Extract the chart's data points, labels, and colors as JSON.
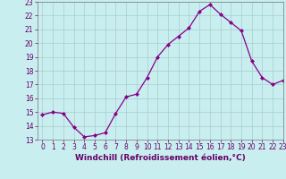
{
  "x": [
    0,
    1,
    2,
    3,
    4,
    5,
    6,
    7,
    8,
    9,
    10,
    11,
    12,
    13,
    14,
    15,
    16,
    17,
    18,
    19,
    20,
    21,
    22,
    23
  ],
  "y": [
    14.8,
    15.0,
    14.9,
    13.9,
    13.2,
    13.3,
    13.5,
    14.9,
    16.1,
    16.3,
    17.5,
    19.0,
    19.9,
    20.5,
    21.1,
    22.3,
    22.8,
    22.1,
    21.5,
    20.9,
    18.7,
    17.5,
    17.0,
    17.3
  ],
  "line_color": "#880088",
  "marker": "D",
  "marker_size": 2.0,
  "background_color": "#c8eef0",
  "grid_color": "#aacccc",
  "xlabel": "Windchill (Refroidissement éolien,°C)",
  "xlabel_fontsize": 6.5,
  "ylim": [
    13,
    23
  ],
  "xlim": [
    -0.5,
    23
  ],
  "yticks": [
    13,
    14,
    15,
    16,
    17,
    18,
    19,
    20,
    21,
    22,
    23
  ],
  "xticks": [
    0,
    1,
    2,
    3,
    4,
    5,
    6,
    7,
    8,
    9,
    10,
    11,
    12,
    13,
    14,
    15,
    16,
    17,
    18,
    19,
    20,
    21,
    22,
    23
  ],
  "tick_fontsize": 5.5,
  "tick_color": "#660066",
  "axis_color": "#777777",
  "label_color": "#660066"
}
